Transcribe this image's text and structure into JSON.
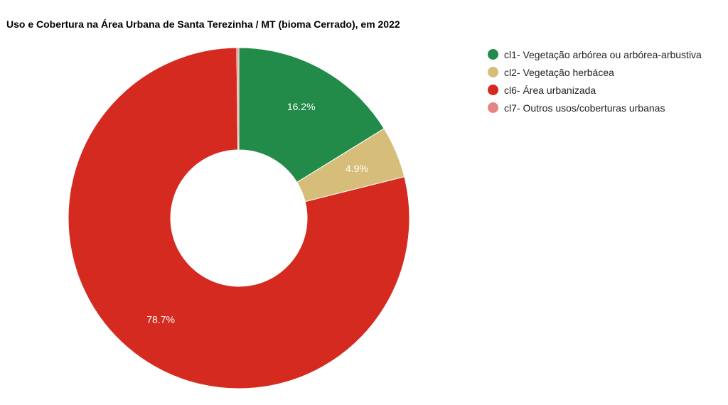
{
  "chart_data": {
    "type": "pie",
    "title": "Uso e Cobertura na Área Urbana de Santa Terezinha / MT (bioma Cerrado), em 2022",
    "donut": true,
    "legend_position": "right",
    "slices": [
      {
        "label": "cl1- Vegetação arbórea ou arbórea-arbustiva",
        "value": 16.2,
        "value_label": "16.2%",
        "color": "#228B4A",
        "show_label": true
      },
      {
        "label": "cl2- Vegetação herbácea",
        "value": 4.9,
        "value_label": "4.9%",
        "color": "#D6BD7A",
        "show_label": true
      },
      {
        "label": "cl6- Área urbanizada",
        "value": 78.7,
        "value_label": "78.7%",
        "color": "#D42A20",
        "show_label": true
      },
      {
        "label": "cl7- Outros usos/coberturas urbanas",
        "value": 0.2,
        "value_label": "",
        "color": "#E38585",
        "show_label": false
      }
    ]
  }
}
